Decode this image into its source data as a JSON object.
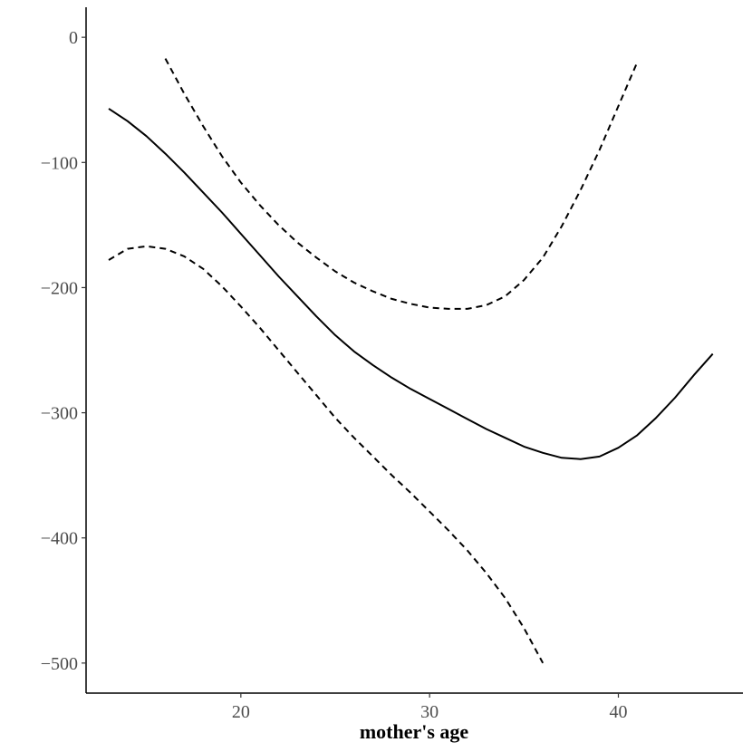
{
  "chart_data": {
    "type": "line",
    "title": "",
    "xlabel": "mother's age",
    "ylabel": "",
    "xlim": [
      11.8,
      46.6
    ],
    "ylim": [
      -524,
      24
    ],
    "x_ticks": [
      20,
      30,
      40
    ],
    "x_tick_labels": [
      "20",
      "30",
      "40"
    ],
    "y_ticks": [
      0,
      -100,
      -200,
      -300,
      -400,
      -500
    ],
    "y_tick_labels": [
      "0",
      "−100",
      "−200",
      "−300",
      "−400",
      "−500"
    ],
    "grid": false,
    "legend": "none",
    "series": [
      {
        "style": "solid",
        "color": "#000000",
        "x": [
          13,
          14,
          15,
          16,
          17,
          18,
          19,
          20,
          21,
          22,
          23,
          24,
          25,
          26,
          27,
          28,
          29,
          30,
          31,
          32,
          33,
          34,
          35,
          36,
          37,
          38,
          39,
          40,
          41,
          42,
          43,
          44,
          45
        ],
        "y": [
          -57,
          -67,
          -79,
          -93,
          -108,
          -124,
          -140,
          -157,
          -174,
          -191,
          -207,
          -223,
          -238,
          -251,
          -262,
          -272,
          -281,
          -289,
          -297,
          -305,
          -313,
          -320,
          -327,
          -332,
          -336,
          -337,
          -335,
          -328,
          -318,
          -304,
          -288,
          -270,
          -253
        ]
      },
      {
        "style": "dashed",
        "color": "#000000",
        "x": [
          16,
          17,
          18,
          19,
          20,
          21,
          22,
          23,
          24,
          25,
          26,
          27,
          28,
          29,
          30,
          31,
          32,
          33,
          34,
          35,
          36,
          37,
          38,
          39,
          40,
          41
        ],
        "y": [
          -17,
          -45,
          -71,
          -95,
          -116,
          -134,
          -150,
          -164,
          -176,
          -187,
          -196,
          -203,
          -209,
          -213,
          -216,
          -217,
          -217,
          -214,
          -207,
          -194,
          -176,
          -151,
          -122,
          -90,
          -55,
          -20
        ]
      },
      {
        "style": "dashed",
        "color": "#000000",
        "x": [
          13,
          14,
          15,
          16,
          17,
          18,
          19,
          20,
          21,
          22,
          23,
          24,
          25,
          26,
          27,
          28,
          29,
          30,
          31,
          32,
          33,
          34,
          35,
          36
        ],
        "y": [
          -178,
          -169,
          -167,
          -169,
          -175,
          -185,
          -199,
          -215,
          -232,
          -250,
          -268,
          -286,
          -304,
          -320,
          -335,
          -350,
          -364,
          -379,
          -394,
          -410,
          -428,
          -448,
          -472,
          -500
        ]
      }
    ]
  }
}
